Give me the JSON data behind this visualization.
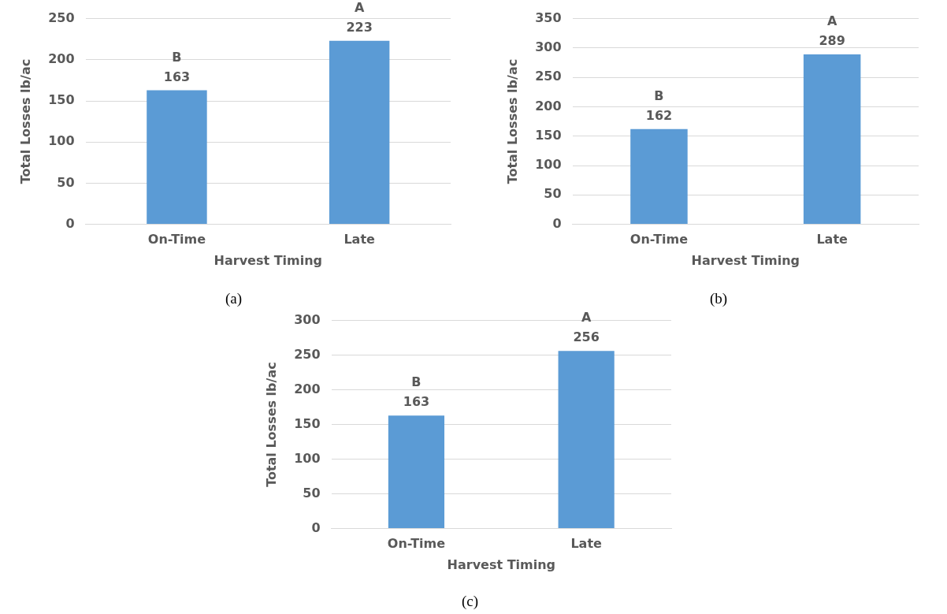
{
  "chart_data": [
    {
      "type": "bar",
      "xlabel": "Harvest Timing",
      "ylabel": "Total Losses lb/ac",
      "categories": [
        "On-Time",
        "Late"
      ],
      "values": [
        163,
        223
      ],
      "color": "#5b9bd5",
      "ylim": [
        0,
        250
      ],
      "yticks": [
        0,
        50,
        100,
        150,
        200,
        250
      ],
      "grid": "y",
      "data_labels": true,
      "annotations": [
        {
          "text": "B",
          "x": "On-Time",
          "y": 163
        },
        {
          "text": "A",
          "x": "Late",
          "y": 223
        },
        "(a)"
      ]
    },
    {
      "type": "bar",
      "xlabel": "Harvest Timing",
      "ylabel": "Total Losses lb/ac",
      "categories": [
        "On-Time",
        "Late"
      ],
      "values": [
        162,
        289
      ],
      "color": "#5b9bd5",
      "ylim": [
        0,
        350
      ],
      "yticks": [
        0,
        50,
        100,
        150,
        200,
        250,
        300,
        350
      ],
      "grid": "y",
      "data_labels": true,
      "annotations": [
        {
          "text": "B",
          "x": "On-Time",
          "y": 162
        },
        {
          "text": "A",
          "x": "Late",
          "y": 289
        },
        "(b)"
      ]
    },
    {
      "type": "bar",
      "xlabel": "Harvest Timing",
      "ylabel": "Total Losses lb/ac",
      "categories": [
        "On-Time",
        "Late"
      ],
      "values": [
        163,
        256
      ],
      "color": "#5b9bd5",
      "ylim": [
        0,
        300
      ],
      "yticks": [
        0,
        50,
        100,
        150,
        200,
        250,
        300
      ],
      "grid": "y",
      "data_labels": true,
      "annotations": [
        {
          "text": "B",
          "x": "On-Time",
          "y": 163
        },
        {
          "text": "A",
          "x": "Late",
          "y": 256
        },
        "(c)"
      ]
    }
  ]
}
